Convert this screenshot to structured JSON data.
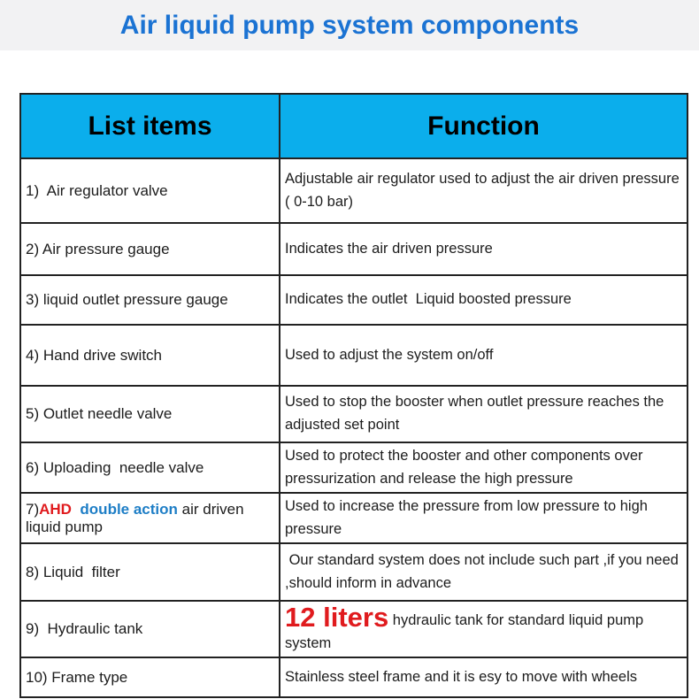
{
  "page": {
    "title": "Air liquid pump system components"
  },
  "colors": {
    "header_bg": "#0baeec",
    "title_blue": "#1b73d3",
    "accent_red": "#e01b1e",
    "accent_blue": "#1e7ec6",
    "border": "#222222",
    "band_bg": "#f2f2f3"
  },
  "table": {
    "headers": {
      "items": "List items",
      "function": "Function"
    },
    "rows": [
      {
        "item": "1)  Air regulator valve",
        "function": "Adjustable air regulator used to adjust the air driven pressure ( 0-10 bar)"
      },
      {
        "item": "2) Air pressure gauge",
        "function": "Indicates the air driven pressure"
      },
      {
        "item": "3) liquid outlet pressure gauge",
        "function": "Indicates the outlet  Liquid boosted pressure"
      },
      {
        "item": "4) Hand drive switch",
        "function": "Used to adjust the system on/off"
      },
      {
        "item": "5) Outlet needle valve",
        "function": "Used to stop the booster when outlet pressure reaches the adjusted set point"
      },
      {
        "item": "6) Uploading  needle valve",
        "function": "Used to protect the booster and other components over pressurization and release the high pressure"
      },
      {
        "item_parts": {
          "prefix": "7)",
          "brand": "AHD",
          "highlight": "  double action ",
          "rest": "air driven liquid pump"
        },
        "function": "Used to increase the pressure from low pressure to high pressure"
      },
      {
        "item": "8) Liquid  filter",
        "function": " Our standard system does not include such part ,if you need ,should inform in advance"
      },
      {
        "item": "9)  Hydraulic tank",
        "function_parts": {
          "emphasis": "12 liters",
          "rest": " hydraulic tank for standard liquid pump system"
        }
      },
      {
        "item": "10) Frame type",
        "function": "Stainless steel frame and it is esy to move with wheels"
      }
    ]
  }
}
